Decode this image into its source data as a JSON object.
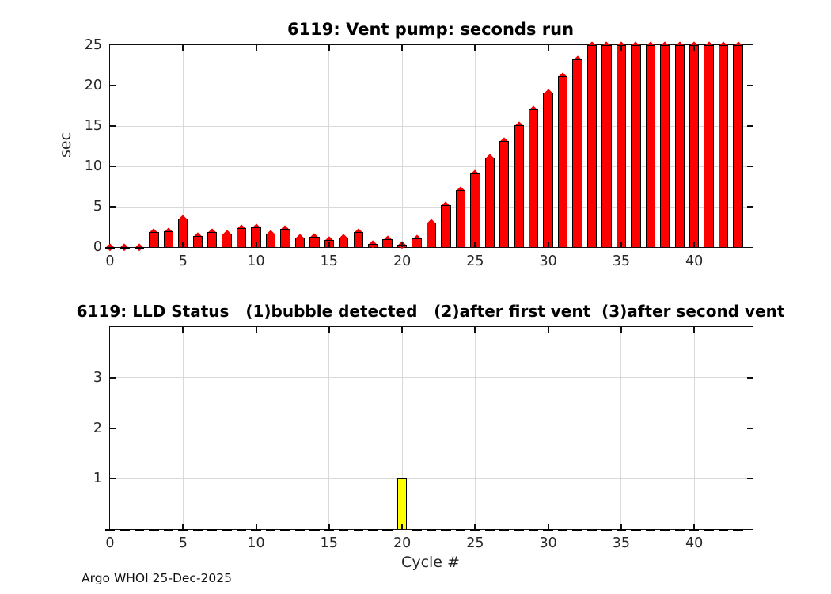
{
  "figure": {
    "footer": "Argo WHOI 25-Dec-2025"
  },
  "chart_data": [
    {
      "type": "bar",
      "title": "6119: Vent pump: seconds run",
      "ylabel": "sec",
      "xlabel": "",
      "x": [
        0,
        1,
        2,
        3,
        4,
        5,
        6,
        7,
        8,
        9,
        10,
        11,
        12,
        13,
        14,
        15,
        16,
        17,
        18,
        19,
        20,
        21,
        22,
        23,
        24,
        25,
        26,
        27,
        28,
        29,
        30,
        31,
        32,
        33,
        34,
        35,
        36,
        37,
        38,
        39,
        40,
        41,
        42,
        43
      ],
      "values": [
        0,
        0,
        0,
        1.9,
        2.0,
        3.5,
        1.4,
        1.9,
        1.7,
        2.4,
        2.5,
        1.7,
        2.3,
        1.2,
        1.3,
        0.9,
        1.2,
        1.9,
        0.4,
        1.0,
        0.3,
        1.1,
        3.0,
        5.2,
        7.1,
        9.1,
        11.1,
        13.1,
        15.1,
        17.1,
        19.1,
        21.2,
        23.2,
        25,
        25,
        25,
        25,
        25,
        25,
        25,
        25,
        25,
        25,
        25
      ],
      "xlim": [
        0,
        44
      ],
      "ylim": [
        0,
        25
      ],
      "xticks": [
        0,
        5,
        10,
        15,
        20,
        25,
        30,
        35,
        40
      ],
      "yticks": [
        0,
        5,
        10,
        15,
        20,
        25
      ],
      "grid": true,
      "bar_color": "#ff0000",
      "bar_edge_color": "#000000",
      "marker": "diamond",
      "marker_color": "#f00000",
      "zero_line_style": "flat-dash",
      "zero_line_color": "#000000"
    },
    {
      "type": "bar",
      "title": "6119: LLD Status   (1)bubble detected   (2)after first vent  (3)after second vent",
      "ylabel": "",
      "xlabel": "Cycle #",
      "x": [
        0,
        1,
        2,
        3,
        4,
        5,
        6,
        7,
        8,
        9,
        10,
        11,
        12,
        13,
        14,
        15,
        16,
        17,
        18,
        19,
        20,
        21,
        22,
        23,
        24,
        25,
        26,
        27,
        28,
        29,
        30,
        31,
        32,
        33,
        34,
        35,
        36,
        37,
        38,
        39,
        40,
        41,
        42,
        43
      ],
      "values": [
        0,
        0,
        0,
        0,
        0,
        0,
        0,
        0,
        0,
        0,
        0,
        0,
        0,
        0,
        0,
        0,
        0,
        0,
        0,
        0,
        1,
        0,
        0,
        0,
        0,
        0,
        0,
        0,
        0,
        0,
        0,
        0,
        0,
        0,
        0,
        0,
        0,
        0,
        0,
        0,
        0,
        0,
        0,
        0
      ],
      "xlim": [
        0,
        44
      ],
      "ylim": [
        0,
        4
      ],
      "xticks": [
        0,
        5,
        10,
        15,
        20,
        25,
        30,
        35,
        40
      ],
      "yticks": [
        1,
        2,
        3
      ],
      "grid": true,
      "bar_color": "#ffff00",
      "bar_edge_color": "#000000",
      "marker": null,
      "marker_color": null,
      "zero_line_style": "flat-dash",
      "zero_line_color": "#000000"
    }
  ]
}
